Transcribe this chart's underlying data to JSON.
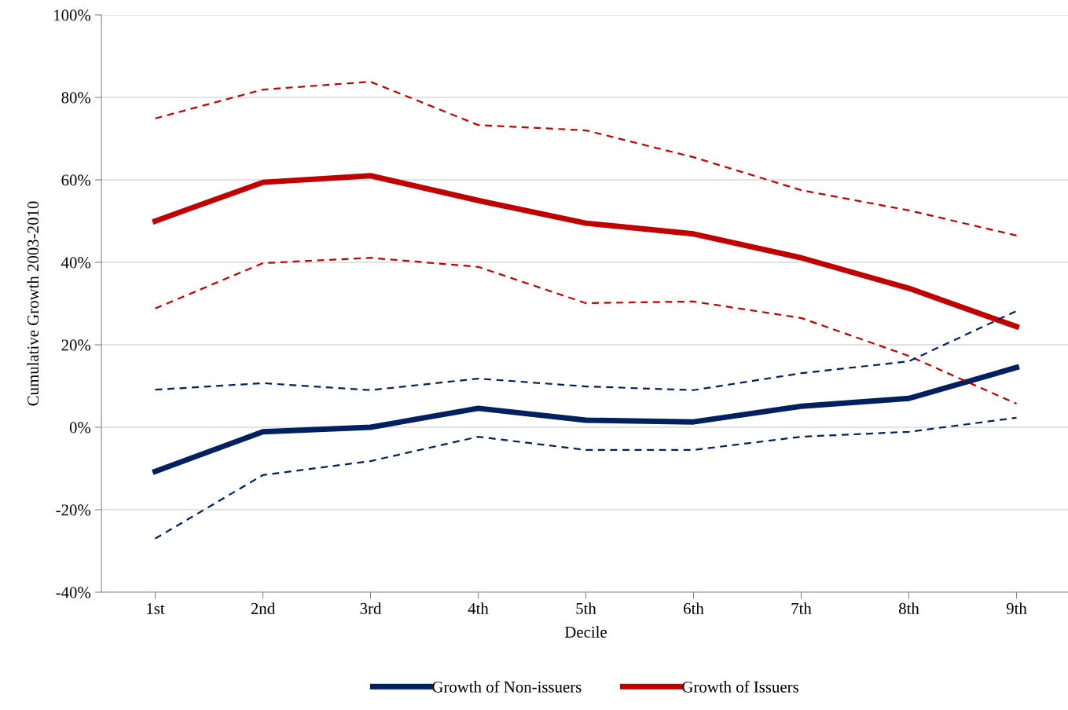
{
  "chart_data": {
    "type": "line",
    "xlabel": "Decile",
    "ylabel": "Cumulative Growth 2003-2010",
    "categories": [
      "1st",
      "2nd",
      "3rd",
      "4th",
      "5th",
      "6th",
      "7th",
      "8th",
      "9th"
    ],
    "series": [
      {
        "name": "Growth of Non-issuers",
        "color": "#002060",
        "line_style": "solid",
        "values": [
          -10.7,
          -1.1,
          0,
          4.6,
          1.7,
          1.3,
          5.1,
          7.0,
          14.5
        ]
      },
      {
        "name": "Growth of Issuers",
        "color": "#c00000",
        "line_style": "solid",
        "values": [
          50,
          59.4,
          61,
          55,
          49.5,
          46.9,
          41.1,
          33.7,
          24.4
        ]
      },
      {
        "color": "#c00000",
        "line_style": "dashed",
        "values": [
          74.9,
          81.9,
          83.8,
          73.3,
          72,
          65.5,
          57.5,
          52.6,
          46.5
        ]
      },
      {
        "color": "#c00000",
        "line_style": "dashed",
        "values": [
          28.8,
          39.8,
          41.1,
          38.9,
          30.1,
          30.5,
          26.5,
          17.3,
          5.7
        ]
      },
      {
        "color": "#002060",
        "line_style": "dashed",
        "values": [
          9.1,
          10.7,
          9.0,
          11.8,
          9.9,
          9.0,
          13.1,
          16.0,
          28.2
        ]
      },
      {
        "color": "#002060",
        "line_style": "dashed",
        "values": [
          -27,
          -11.6,
          -8.2,
          -2.3,
          -5.5,
          -5.5,
          -2.3,
          -1.1,
          2.3
        ]
      }
    ],
    "ylim": [
      -40,
      100
    ],
    "yticks": [
      {
        "value": -40,
        "label": "-40%"
      },
      {
        "value": -20,
        "label": "-20%"
      },
      {
        "value": 0,
        "label": "0%"
      },
      {
        "value": 20,
        "label": "20%"
      },
      {
        "value": 40,
        "label": "40%"
      },
      {
        "value": 60,
        "label": "60%"
      },
      {
        "value": 80,
        "label": "80%"
      },
      {
        "value": 100,
        "label": "100%"
      }
    ],
    "grid": "y",
    "legend": "bottom",
    "marker": "none"
  }
}
